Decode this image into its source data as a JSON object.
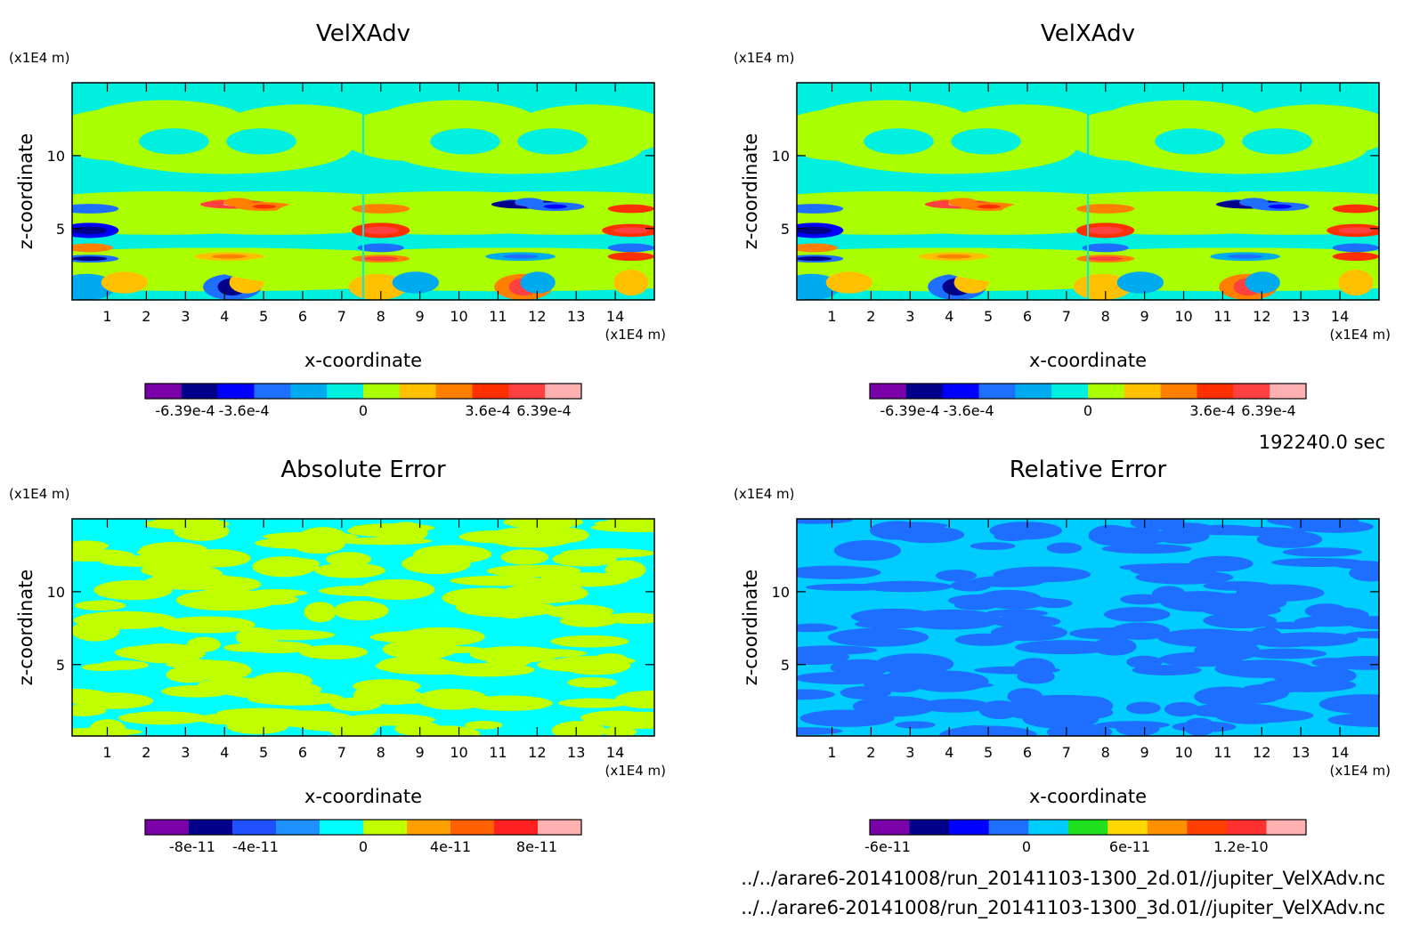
{
  "chart_data": [
    {
      "type": "heatmap",
      "title": "VelXAdv",
      "xlabel": "x-coordinate",
      "ylabel": "z-coordinate",
      "x_unit": "(x1E4 m)",
      "y_unit": "(x1E4 m)",
      "xlim": [
        0.1,
        15
      ],
      "ylim": [
        0.1,
        15
      ],
      "x_ticks": [
        "1",
        "2",
        "3",
        "4",
        "5",
        "6",
        "7",
        "8",
        "9",
        "10",
        "11",
        "12",
        "13",
        "14"
      ],
      "y_ticks": [
        "5",
        "10"
      ],
      "colorbar": {
        "colors": [
          "#7a00a8",
          "#00008b",
          "#0000ff",
          "#1e6eff",
          "#00aaee",
          "#00f0e0",
          "#aaff00",
          "#ffc000",
          "#ff8000",
          "#ff3000",
          "#ff4040",
          "#ffb0b0"
        ],
        "tick_labels": [
          "-6.39e-4",
          "-3.6e-4",
          "0",
          "3.6e-4",
          "6.39e-4"
        ],
        "tick_values": [
          -0.000639,
          -0.00036,
          0,
          0.00036,
          0.000639
        ]
      },
      "background_color": "#00f0e0"
    },
    {
      "type": "heatmap",
      "title": "VelXAdv",
      "xlabel": "x-coordinate",
      "ylabel": "z-coordinate",
      "x_unit": "(x1E4 m)",
      "y_unit": "(x1E4 m)",
      "xlim": [
        0.1,
        15
      ],
      "ylim": [
        0.1,
        15
      ],
      "x_ticks": [
        "1",
        "2",
        "3",
        "4",
        "5",
        "6",
        "7",
        "8",
        "9",
        "10",
        "11",
        "12",
        "13",
        "14"
      ],
      "y_ticks": [
        "5",
        "10"
      ],
      "colorbar": {
        "colors": [
          "#7a00a8",
          "#00008b",
          "#0000ff",
          "#1e6eff",
          "#00aaee",
          "#00f0e0",
          "#aaff00",
          "#ffc000",
          "#ff8000",
          "#ff3000",
          "#ff4040",
          "#ffb0b0"
        ],
        "tick_labels": [
          "-6.39e-4",
          "-3.6e-4",
          "0",
          "3.6e-4",
          "6.39e-4"
        ],
        "tick_values": [
          -0.000639,
          -0.00036,
          0,
          0.00036,
          0.000639
        ]
      },
      "background_color": "#00f0e0"
    },
    {
      "type": "heatmap",
      "title": "Absolute Error",
      "xlabel": "x-coordinate",
      "ylabel": "z-coordinate",
      "x_unit": "(x1E4 m)",
      "y_unit": "(x1E4 m)",
      "xlim": [
        0.1,
        15
      ],
      "ylim": [
        0.1,
        15
      ],
      "x_ticks": [
        "1",
        "2",
        "3",
        "4",
        "5",
        "6",
        "7",
        "8",
        "9",
        "10",
        "11",
        "12",
        "13",
        "14"
      ],
      "y_ticks": [
        "5",
        "10"
      ],
      "colorbar": {
        "colors": [
          "#7a00a8",
          "#00008b",
          "#1e50ff",
          "#1e90ff",
          "#00ffff",
          "#c0ff00",
          "#ffa000",
          "#ff6000",
          "#ff2020",
          "#ffb0b0"
        ],
        "tick_labels": [
          "-8e-11",
          "-4e-11",
          "0",
          "4e-11",
          "8e-11"
        ],
        "tick_values": [
          -8e-11,
          -4e-11,
          0,
          4e-11,
          8e-11
        ]
      },
      "background_color": "#00ffff"
    },
    {
      "type": "heatmap",
      "title": "Relative Error",
      "xlabel": "x-coordinate",
      "ylabel": "z-coordinate",
      "x_unit": "(x1E4 m)",
      "y_unit": "(x1E4 m)",
      "xlim": [
        0.1,
        15
      ],
      "ylim": [
        0.1,
        15
      ],
      "x_ticks": [
        "1",
        "2",
        "3",
        "4",
        "5",
        "6",
        "7",
        "8",
        "9",
        "10",
        "11",
        "12",
        "13",
        "14"
      ],
      "y_ticks": [
        "5",
        "10"
      ],
      "colorbar": {
        "colors": [
          "#7a00a8",
          "#00008b",
          "#0000ff",
          "#1e6eff",
          "#00ccff",
          "#20e020",
          "#ffd700",
          "#ff9000",
          "#ff4000",
          "#ff3030",
          "#ffb0b0"
        ],
        "tick_labels": [
          "-6e-11",
          "0",
          "6e-11",
          "1.2e-10"
        ],
        "tick_values": [
          -6e-11,
          0,
          6e-11,
          1.2e-10
        ]
      },
      "background_color": "#00ccff"
    }
  ],
  "time_label": "192240.0 sec",
  "files": [
    "../../arare6-20141008/run_20141103-1300_2d.01//jupiter_VelXAdv.nc",
    "../../arare6-20141008/run_20141103-1300_3d.01//jupiter_VelXAdv.nc"
  ]
}
